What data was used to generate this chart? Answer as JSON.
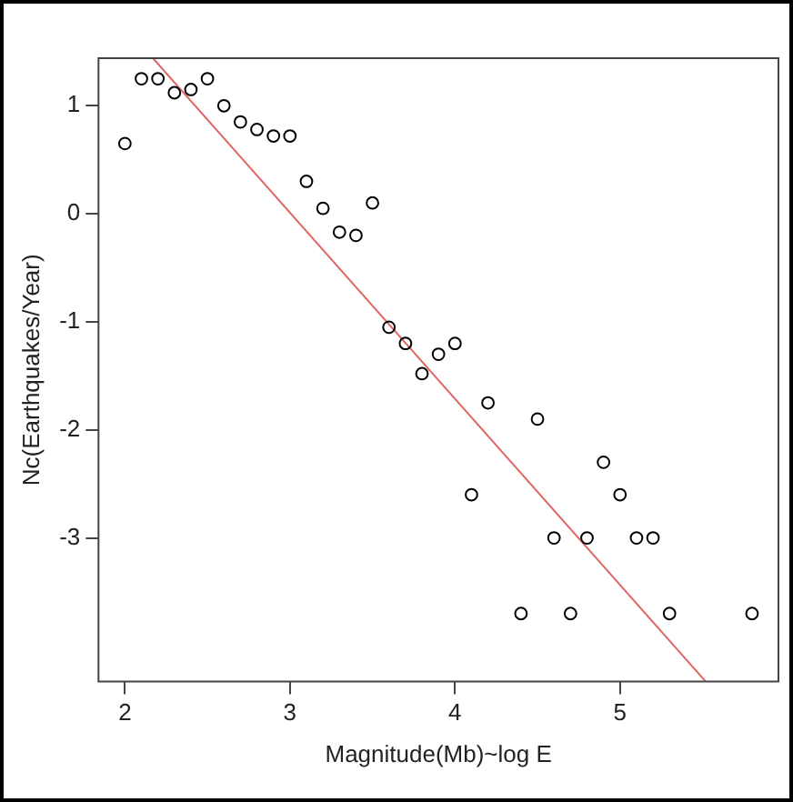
{
  "chart_data": {
    "type": "scatter",
    "xlabel": "Magnitude(Mb)~log E",
    "ylabel": "Nc(Earthquakes/Year)",
    "xlim": [
      1.84,
      5.96
    ],
    "ylim": [
      -4.33,
      1.44
    ],
    "xticks": [
      2,
      3,
      4,
      5
    ],
    "yticks": [
      -3,
      -2,
      -1,
      0,
      1
    ],
    "grid": false,
    "legend": false,
    "marker": "circle",
    "series": [
      {
        "color": "#000000",
        "x": [
          2.0,
          2.1,
          2.2,
          2.3,
          2.4,
          2.5,
          2.6,
          2.7,
          2.8,
          2.9,
          3.0,
          3.1,
          3.2,
          3.3,
          3.4,
          3.5,
          3.6,
          3.7,
          3.8,
          3.9,
          4.0,
          4.1,
          4.2,
          4.4,
          4.5,
          4.6,
          4.7,
          4.8,
          4.9,
          5.0,
          5.1,
          5.2,
          5.3,
          5.8
        ],
        "values": [
          0.65,
          1.25,
          1.25,
          1.12,
          1.15,
          1.25,
          1.0,
          0.85,
          0.78,
          0.72,
          0.72,
          0.3,
          0.05,
          -0.17,
          -0.2,
          0.1,
          -1.05,
          -1.2,
          -1.48,
          -1.3,
          -1.2,
          -2.6,
          -1.75,
          -3.7,
          -1.9,
          -3.0,
          -3.7,
          -3.0,
          -2.3,
          -2.6,
          -3.0,
          -3.0,
          -3.7,
          -3.7
        ]
      },
      {
        "type": "line",
        "color": "#e06666",
        "marker": "none",
        "x": [
          2.17,
          5.52
        ],
        "values": [
          1.44,
          -4.33
        ]
      }
    ]
  }
}
